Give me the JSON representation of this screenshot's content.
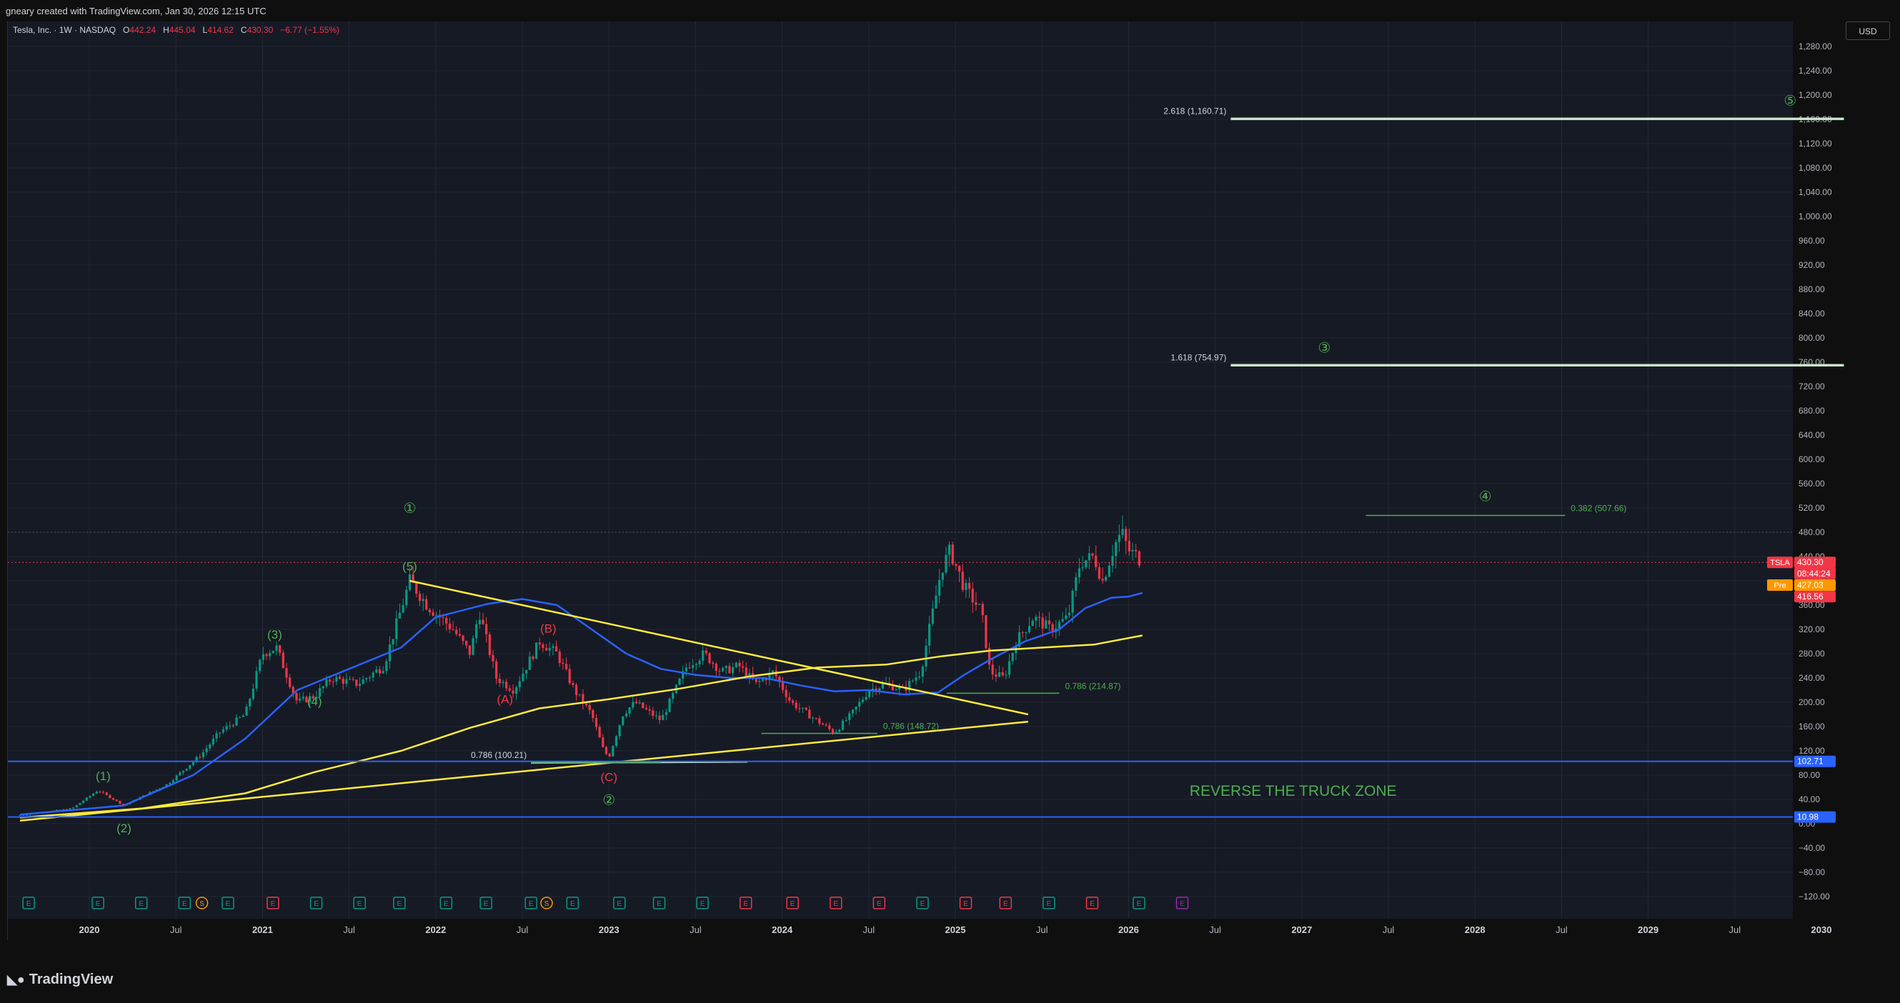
{
  "header": {
    "credit": "gneary created with TradingView.com, Jan 30, 2026 12:15 UTC"
  },
  "legend": {
    "symbol": "Tesla, Inc. · 1W · NASDAQ",
    "open_label": "O",
    "open": "442.24",
    "high_label": "H",
    "high": "445.04",
    "low_label": "L",
    "low": "414.62",
    "close_label": "C",
    "close": "430.30",
    "change": "−6.77 (−1.55%)"
  },
  "currency": "USD",
  "brand": {
    "logo_icon": "tradingview-logo-icon",
    "name": "TradingView"
  },
  "colors": {
    "background": "#161a25",
    "grid": "#232733",
    "up": "#089981",
    "down": "#f23645",
    "ma_fast": "#2962ff",
    "ma_slow": "#ffeb3b",
    "wave_green": "#4caf50",
    "wave_red": "#f23645",
    "fib_line": "#c8e6c9",
    "zone_text": "#4caf50",
    "support_blue": "#2962ff"
  },
  "chart_data": {
    "type": "candlestick",
    "symbol": "TSLA",
    "interval": "1W",
    "y_axis": {
      "ylim": [
        -136,
        1370
      ],
      "ticks": [
        "1,280.00",
        "1,240.00",
        "1,200.00",
        "1,160.00",
        "1,120.00",
        "1,080.00",
        "1,040.00",
        "1,000.00",
        "960.00",
        "920.00",
        "880.00",
        "840.00",
        "800.00",
        "760.00",
        "720.00",
        "680.00",
        "640.00",
        "600.00",
        "560.00",
        "520.00",
        "480.00",
        "440.00",
        "400.00",
        "360.00",
        "320.00",
        "280.00",
        "240.00",
        "200.00",
        "160.00",
        "120.00",
        "80.00",
        "40.00",
        "0.00",
        "−40.00",
        "−80.00",
        "−120.00"
      ]
    },
    "x_axis": {
      "labels": [
        {
          "t": 2020.0,
          "label": "2020",
          "bold": true
        },
        {
          "t": 2020.5,
          "label": "Jul",
          "bold": false
        },
        {
          "t": 2021.0,
          "label": "2021",
          "bold": true
        },
        {
          "t": 2021.5,
          "label": "Jul",
          "bold": false
        },
        {
          "t": 2022.0,
          "label": "2022",
          "bold": true
        },
        {
          "t": 2022.5,
          "label": "Jul",
          "bold": false
        },
        {
          "t": 2023.0,
          "label": "2023",
          "bold": true
        },
        {
          "t": 2023.5,
          "label": "Jul",
          "bold": false
        },
        {
          "t": 2024.0,
          "label": "2024",
          "bold": true
        },
        {
          "t": 2024.5,
          "label": "Jul",
          "bold": false
        },
        {
          "t": 2025.0,
          "label": "2025",
          "bold": true
        },
        {
          "t": 2025.5,
          "label": "Jul",
          "bold": false
        },
        {
          "t": 2026.0,
          "label": "2026",
          "bold": true
        },
        {
          "t": 2026.5,
          "label": "Jul",
          "bold": false
        },
        {
          "t": 2027.0,
          "label": "2027",
          "bold": true
        },
        {
          "t": 2027.5,
          "label": "Jul",
          "bold": false
        },
        {
          "t": 2028.0,
          "label": "2028",
          "bold": true
        },
        {
          "t": 2028.5,
          "label": "Jul",
          "bold": false
        },
        {
          "t": 2029.0,
          "label": "2029",
          "bold": true
        },
        {
          "t": 2029.5,
          "label": "Jul",
          "bold": false
        },
        {
          "t": 2030.0,
          "label": "2030",
          "bold": true
        }
      ]
    },
    "price_path": [
      [
        2019.6,
        14
      ],
      [
        2019.9,
        25
      ],
      [
        2020.05,
        55
      ],
      [
        2020.2,
        30
      ],
      [
        2020.45,
        65
      ],
      [
        2020.65,
        115
      ],
      [
        2020.75,
        150
      ],
      [
        2020.9,
        180
      ],
      [
        2021.0,
        280
      ],
      [
        2021.08,
        290
      ],
      [
        2021.2,
        200
      ],
      [
        2021.3,
        210
      ],
      [
        2021.4,
        240
      ],
      [
        2021.55,
        230
      ],
      [
        2021.7,
        260
      ],
      [
        2021.85,
        400
      ],
      [
        2021.95,
        360
      ],
      [
        2022.1,
        320
      ],
      [
        2022.2,
        280
      ],
      [
        2022.25,
        350
      ],
      [
        2022.35,
        240
      ],
      [
        2022.45,
        220
      ],
      [
        2022.6,
        300
      ],
      [
        2022.7,
        280
      ],
      [
        2022.8,
        220
      ],
      [
        2022.9,
        180
      ],
      [
        2022.97,
        120
      ],
      [
        2023.0,
        110
      ],
      [
        2023.08,
        180
      ],
      [
        2023.15,
        200
      ],
      [
        2023.3,
        170
      ],
      [
        2023.45,
        260
      ],
      [
        2023.55,
        280
      ],
      [
        2023.65,
        250
      ],
      [
        2023.75,
        260
      ],
      [
        2023.85,
        230
      ],
      [
        2023.95,
        250
      ],
      [
        2024.05,
        200
      ],
      [
        2024.2,
        170
      ],
      [
        2024.3,
        150
      ],
      [
        2024.4,
        180
      ],
      [
        2024.5,
        220
      ],
      [
        2024.6,
        230
      ],
      [
        2024.7,
        220
      ],
      [
        2024.8,
        250
      ],
      [
        2024.92,
        420
      ],
      [
        2024.97,
        450
      ],
      [
        2025.05,
        390
      ],
      [
        2025.15,
        350
      ],
      [
        2025.2,
        250
      ],
      [
        2025.28,
        240
      ],
      [
        2025.35,
        300
      ],
      [
        2025.45,
        340
      ],
      [
        2025.55,
        320
      ],
      [
        2025.65,
        340
      ],
      [
        2025.72,
        430
      ],
      [
        2025.8,
        440
      ],
      [
        2025.85,
        400
      ],
      [
        2025.92,
        460
      ],
      [
        2025.96,
        480
      ],
      [
        2026.0,
        450
      ],
      [
        2026.05,
        440
      ],
      [
        2026.08,
        430
      ]
    ],
    "overlays": {
      "ma_fast": [
        [
          2019.6,
          15
        ],
        [
          2020.2,
          30
        ],
        [
          2020.6,
          80
        ],
        [
          2020.9,
          140
        ],
        [
          2021.2,
          220
        ],
        [
          2021.5,
          255
        ],
        [
          2021.8,
          290
        ],
        [
          2022.0,
          340
        ],
        [
          2022.3,
          362
        ],
        [
          2022.5,
          370
        ],
        [
          2022.7,
          360
        ],
        [
          2022.9,
          320
        ],
        [
          2023.1,
          280
        ],
        [
          2023.3,
          255
        ],
        [
          2023.5,
          245
        ],
        [
          2023.7,
          240
        ],
        [
          2023.9,
          240
        ],
        [
          2024.1,
          228
        ],
        [
          2024.3,
          218
        ],
        [
          2024.5,
          220
        ],
        [
          2024.7,
          213
        ],
        [
          2024.9,
          216
        ],
        [
          2025.05,
          245
        ],
        [
          2025.2,
          270
        ],
        [
          2025.4,
          300
        ],
        [
          2025.6,
          320
        ],
        [
          2025.75,
          355
        ],
        [
          2025.9,
          372
        ],
        [
          2026.0,
          374
        ],
        [
          2026.08,
          380
        ]
      ],
      "ma_slow": [
        [
          2019.6,
          10
        ],
        [
          2020.3,
          25
        ],
        [
          2020.9,
          50
        ],
        [
          2021.3,
          85
        ],
        [
          2021.8,
          120
        ],
        [
          2022.2,
          158
        ],
        [
          2022.6,
          190
        ],
        [
          2023.0,
          205
        ],
        [
          2023.4,
          222
        ],
        [
          2023.8,
          242
        ],
        [
          2024.2,
          257
        ],
        [
          2024.6,
          262
        ],
        [
          2024.9,
          275
        ],
        [
          2025.2,
          285
        ],
        [
          2025.5,
          290
        ],
        [
          2025.8,
          295
        ],
        [
          2026.08,
          310
        ]
      ]
    },
    "trendlines": [
      {
        "from": [
          2021.85,
          400
        ],
        "to": [
          2025.42,
          180
        ],
        "color": "#ffeb3b"
      },
      {
        "from": [
          2019.6,
          5
        ],
        "to": [
          2025.42,
          168
        ],
        "color": "#ffeb3b"
      },
      {
        "from": [
          2022.55,
          100.21
        ],
        "to": [
          2023.8,
          102
        ],
        "color": "#c8e6c9"
      }
    ],
    "fib_levels": [
      {
        "label": "2.618 (1,160.71)",
        "value": 1160.71,
        "x_start": 2026.59,
        "x_end": 2030.13,
        "style": "thick",
        "label_side": "left"
      },
      {
        "label": "1.618 (754.97)",
        "value": 754.97,
        "x_start": 2026.59,
        "x_end": 2030.13,
        "style": "thick",
        "label_side": "left"
      },
      {
        "label": "0.382 (507.66)",
        "value": 507.66,
        "x_start": 2027.37,
        "x_end": 2028.52,
        "style": "thin",
        "label_side": "right"
      },
      {
        "label": "0.786 (214.87)",
        "value": 214.87,
        "x_start": 2024.95,
        "x_end": 2025.6,
        "style": "thin",
        "label_side": "right"
      },
      {
        "label": "0.786 (148.72)",
        "value": 148.72,
        "x_start": 2023.88,
        "x_end": 2024.55,
        "style": "thin",
        "label_side": "right"
      },
      {
        "label": "0.786 (100.21)",
        "value": 100.21,
        "x_start": 2022.55,
        "x_end": 2023.3,
        "style": "thin",
        "label_side": "left"
      }
    ],
    "horizontal_lines": [
      {
        "value": 102.71,
        "label": "102.71",
        "color": "#2962ff"
      },
      {
        "value": 10.98,
        "label": "10.98",
        "color": "#2962ff"
      }
    ],
    "wave_labels": [
      {
        "text": "①",
        "t": 2021.85,
        "y": 512,
        "color": "#4caf50",
        "size": 20
      },
      {
        "text": "(5)",
        "t": 2021.85,
        "y": 417,
        "color": "#4caf50",
        "size": 17
      },
      {
        "text": "(3)",
        "t": 2021.07,
        "y": 305,
        "color": "#4caf50",
        "size": 17
      },
      {
        "text": "(4)",
        "t": 2021.3,
        "y": 195,
        "color": "#4caf50",
        "size": 17
      },
      {
        "text": "(1)",
        "t": 2020.08,
        "y": 72,
        "color": "#4caf50",
        "size": 17
      },
      {
        "text": "(2)",
        "t": 2020.2,
        "y": -14,
        "color": "#4caf50",
        "size": 17
      },
      {
        "text": "(B)",
        "t": 2022.65,
        "y": 315,
        "color": "#f23645",
        "size": 17
      },
      {
        "text": "(A)",
        "t": 2022.4,
        "y": 198,
        "color": "#f23645",
        "size": 17
      },
      {
        "text": "(C)",
        "t": 2023.0,
        "y": 70,
        "color": "#f23645",
        "size": 17
      },
      {
        "text": "②",
        "t": 2023.0,
        "y": 31,
        "color": "#4caf50",
        "size": 20
      },
      {
        "text": "③",
        "t": 2027.13,
        "y": 776,
        "color": "#4caf50",
        "size": 20
      },
      {
        "text": "④",
        "t": 2028.06,
        "y": 531,
        "color": "#4caf50",
        "size": 20
      },
      {
        "text": "⑤",
        "t": 2029.82,
        "y": 1183,
        "color": "#4caf50",
        "size": 20
      }
    ],
    "zone_label": {
      "text": "REVERSE THE TRUCK ZONE",
      "t": 2026.95,
      "y": 46
    },
    "price_tags": [
      {
        "label": "TSLA",
        "value": "430.30",
        "y": 430.3,
        "bg": "#f23645"
      },
      {
        "label": "",
        "value": "08:44:24",
        "y": 412,
        "bg": "#f23645"
      },
      {
        "label": "Pre",
        "value": "427.03",
        "y": 393,
        "bg": "#ff9800"
      },
      {
        "label": "",
        "value": "416.56",
        "y": 374,
        "bg": "#f23645"
      }
    ],
    "events": [
      {
        "t": 2019.65,
        "kind": "E",
        "color": "#089981"
      },
      {
        "t": 2020.05,
        "kind": "E",
        "color": "#089981"
      },
      {
        "t": 2020.3,
        "kind": "E",
        "color": "#089981"
      },
      {
        "t": 2020.55,
        "kind": "E",
        "color": "#089981"
      },
      {
        "t": 2020.65,
        "kind": "S",
        "color": "#ff9800"
      },
      {
        "t": 2020.8,
        "kind": "E",
        "color": "#089981"
      },
      {
        "t": 2021.06,
        "kind": "E",
        "color": "#f23645"
      },
      {
        "t": 2021.31,
        "kind": "E",
        "color": "#089981"
      },
      {
        "t": 2021.56,
        "kind": "E",
        "color": "#089981"
      },
      {
        "t": 2021.79,
        "kind": "E",
        "color": "#089981"
      },
      {
        "t": 2022.06,
        "kind": "E",
        "color": "#089981"
      },
      {
        "t": 2022.29,
        "kind": "E",
        "color": "#089981"
      },
      {
        "t": 2022.55,
        "kind": "E",
        "color": "#089981"
      },
      {
        "t": 2022.64,
        "kind": "S",
        "color": "#ff9800"
      },
      {
        "t": 2022.79,
        "kind": "E",
        "color": "#089981"
      },
      {
        "t": 2023.06,
        "kind": "E",
        "color": "#089981"
      },
      {
        "t": 2023.29,
        "kind": "E",
        "color": "#089981"
      },
      {
        "t": 2023.54,
        "kind": "E",
        "color": "#089981"
      },
      {
        "t": 2023.79,
        "kind": "E",
        "color": "#f23645"
      },
      {
        "t": 2024.06,
        "kind": "E",
        "color": "#f23645"
      },
      {
        "t": 2024.31,
        "kind": "E",
        "color": "#f23645"
      },
      {
        "t": 2024.56,
        "kind": "E",
        "color": "#f23645"
      },
      {
        "t": 2024.81,
        "kind": "E",
        "color": "#089981"
      },
      {
        "t": 2025.06,
        "kind": "E",
        "color": "#f23645"
      },
      {
        "t": 2025.29,
        "kind": "E",
        "color": "#f23645"
      },
      {
        "t": 2025.54,
        "kind": "E",
        "color": "#089981"
      },
      {
        "t": 2025.79,
        "kind": "E",
        "color": "#f23645"
      },
      {
        "t": 2026.06,
        "kind": "E",
        "color": "#089981"
      },
      {
        "t": 2026.31,
        "kind": "E",
        "color": "#9c27b0"
      }
    ]
  }
}
